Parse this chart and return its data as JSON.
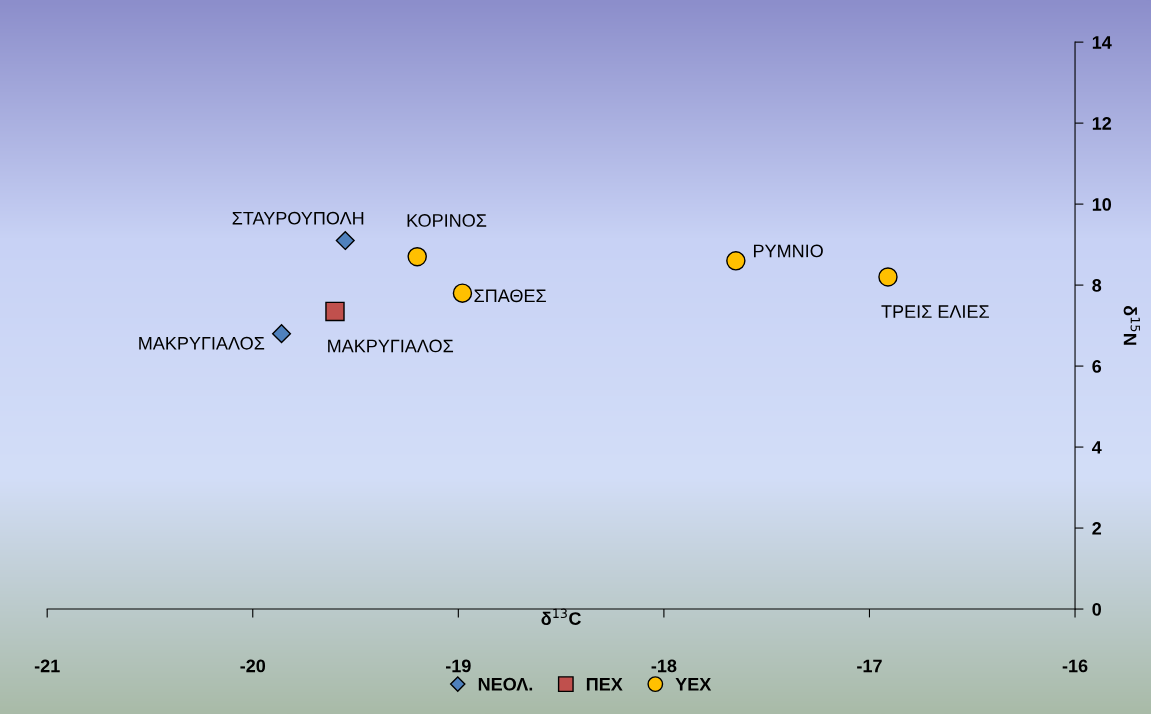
{
  "chart_data": {
    "type": "scatter",
    "xlabel": "δ$^{13}$C",
    "ylabel": "δ$^{15}$N",
    "xlim": [
      -21,
      -16
    ],
    "xticks": [
      -21,
      -20,
      -19,
      -18,
      -17,
      -16
    ],
    "ylim": [
      0,
      14
    ],
    "yticks": [
      0,
      2,
      4,
      6,
      8,
      10,
      12,
      14
    ],
    "grid": false,
    "legend": "bottom",
    "series": [
      {
        "name": "ΝΕΟΛ.",
        "color": "#4f81bd",
        "marker": "diamond",
        "x": [
          -19.55,
          -19.86
        ],
        "values": [
          9.1,
          6.8
        ]
      },
      {
        "name": "ΠΕΧ",
        "color": "#c0504d",
        "marker": "square",
        "x": [
          -19.6
        ],
        "values": [
          7.35
        ]
      },
      {
        "name": "ΥΕΧ",
        "color": "#ffc000",
        "marker": "circle",
        "x": [
          -19.2,
          -18.98,
          -17.65,
          -16.91
        ],
        "values": [
          8.7,
          7.8,
          8.6,
          8.2
        ]
      }
    ],
    "annotations": [
      {
        "text": "ΣΤΑΥΡΟΥΠΟΛΗ",
        "x": -19.55,
        "y": 9.1
      },
      {
        "text": "ΜΑΚΡΥΓΙΑΛΟΣ",
        "x": -19.86,
        "y": 6.8
      },
      {
        "text": "ΜΑΚΡΥΓΙΑΛΟΣ",
        "x": -19.6,
        "y": 7.35
      },
      {
        "text": "ΚΟΡΙΝΟΣ",
        "x": -19.2,
        "y": 8.7
      },
      {
        "text": "ΣΠΑΘΕΣ",
        "x": -18.98,
        "y": 7.8
      },
      {
        "text": "ΡΥΜΝΙΟ",
        "x": -17.65,
        "y": 8.6
      },
      {
        "text": "ΤΡΕΙΣ ΕΛΙΕΣ",
        "x": -16.91,
        "y": 8.2
      }
    ]
  }
}
